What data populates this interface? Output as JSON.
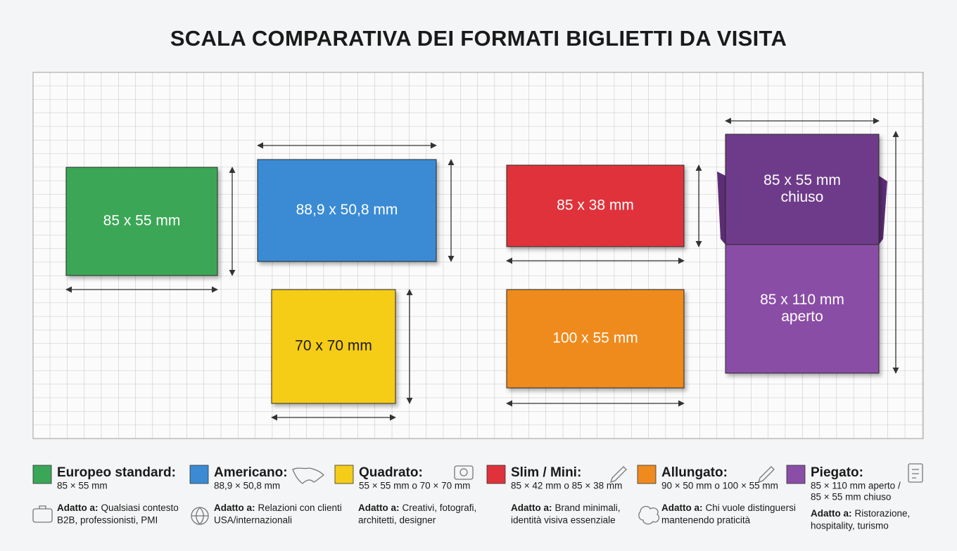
{
  "title": "SCALA COMPARATIVA DEI FORMATI BIGLIETTI DA VISITA",
  "cards": [
    {
      "lines": [
        "85 x 55 mm"
      ]
    },
    {
      "lines": [
        "88,9 x 50,8 mm"
      ]
    },
    {
      "lines": [
        "70 x 70 mm"
      ]
    },
    {
      "lines": [
        "85 x 38 mm"
      ]
    },
    {
      "lines": [
        "100 x 55 mm"
      ]
    },
    {
      "lines": [
        "85 x 55 mm",
        "chiuso"
      ]
    },
    {
      "lines": [
        "85 x 110 mm",
        "aperto"
      ]
    }
  ],
  "legend": [
    {
      "name": "Europeo standard:",
      "dims": [
        "85 × 55 mm"
      ],
      "adatto_label": "Adatto a:",
      "adatto_text": [
        "Qualsiasi contesto",
        "B2B, professionisti, PMI"
      ]
    },
    {
      "name": "Americano:",
      "dims": [
        "88,9 × 50,8 mm"
      ],
      "adatto_label": "Adatto a:",
      "adatto_text": [
        "Relazioni con clienti",
        "USA/internazionali"
      ]
    },
    {
      "name": "Quadrato:",
      "dims": [
        "55 × 55 mm o 70 × 70 mm"
      ],
      "adatto_label": "Adatto a:",
      "adatto_text": [
        "Creativi, fotografi,",
        "architetti, designer"
      ]
    },
    {
      "name": "Slim / Mini:",
      "dims": [
        "85 × 42 mm o 85 × 38 mm"
      ],
      "adatto_label": "Adatto a:",
      "adatto_text": [
        "Brand minimali,",
        "identità visiva essenziale"
      ]
    },
    {
      "name": "Allungato:",
      "dims": [
        "90 × 50 mm o 100 × 55 mm"
      ],
      "adatto_label": "Adatto a:",
      "adatto_text": [
        "Chi vuole distinguersi",
        "mantenendo praticità"
      ]
    },
    {
      "name": "Piegato:",
      "dims": [
        "85 × 110 mm aperto /",
        "85 × 55 mm chiuso"
      ],
      "adatto_label": "Adatto a:",
      "adatto_text": [
        "Ristorazione,",
        "hospitality, turismo"
      ]
    }
  ]
}
